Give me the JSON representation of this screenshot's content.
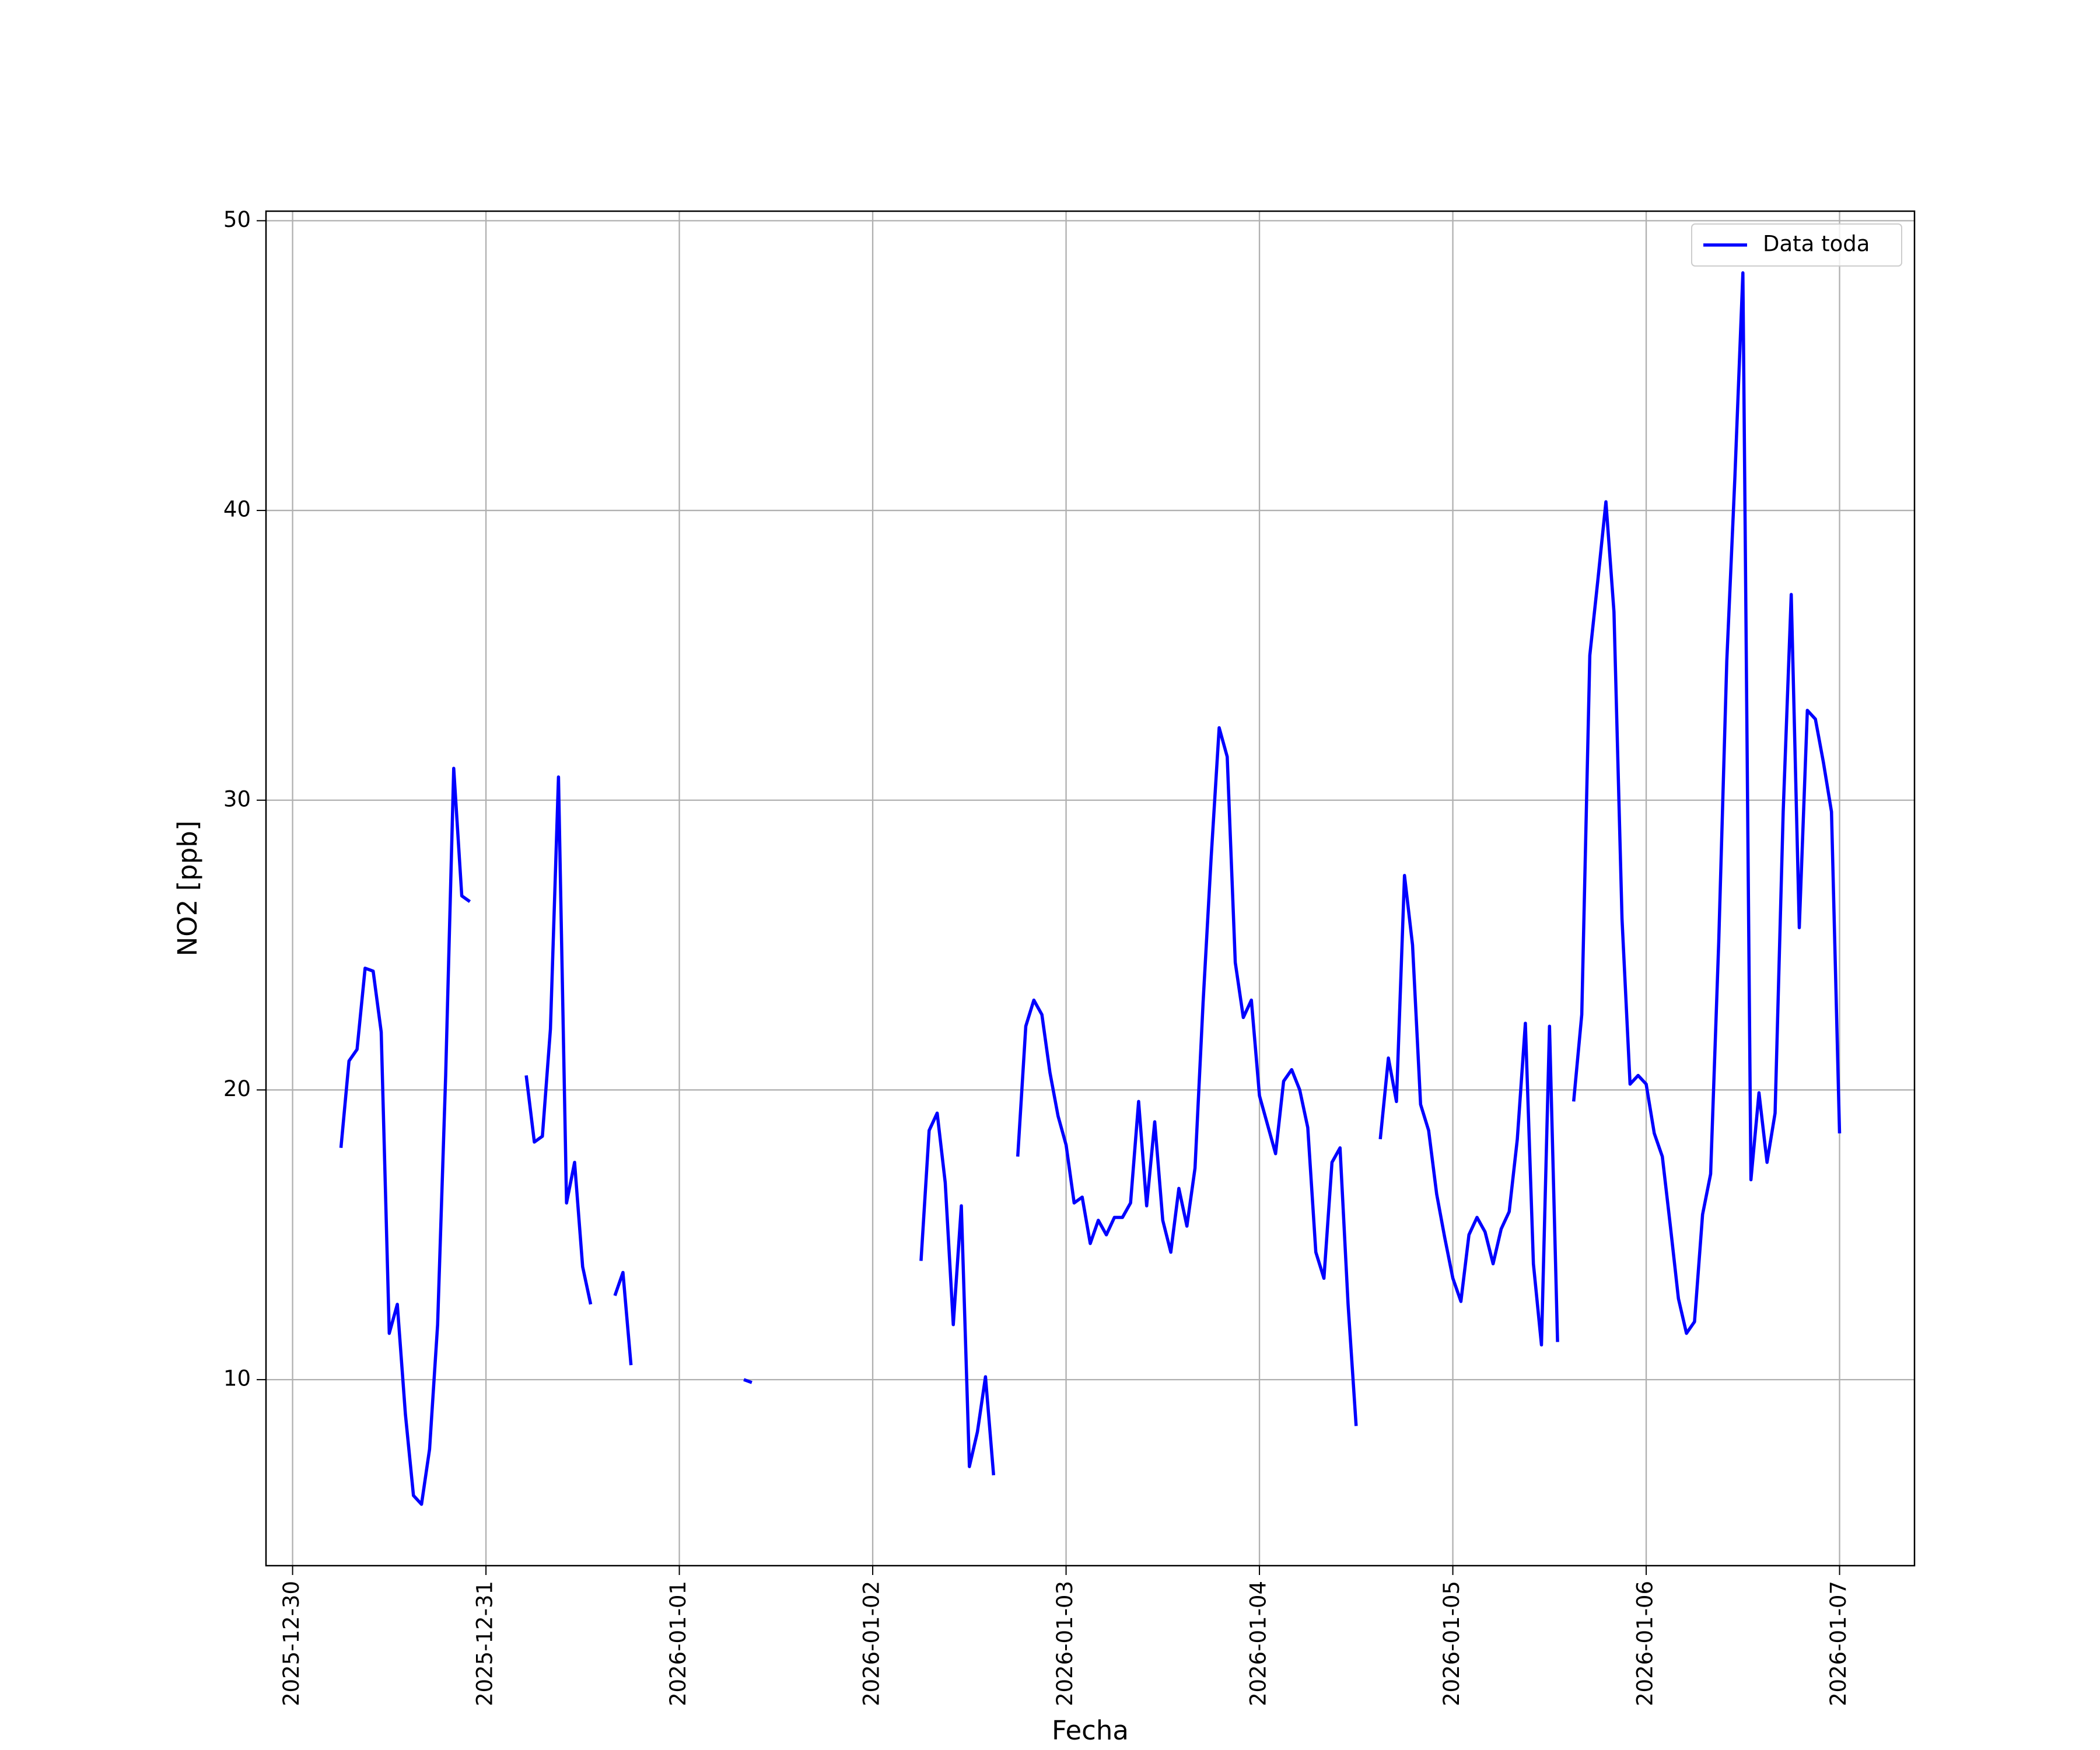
{
  "chart_data": {
    "type": "line",
    "xlabel": "Fecha",
    "ylabel": "NO2 [ppb]",
    "x": [
      "2025-12-30 06:00",
      "2025-12-30 07:00",
      "2025-12-30 08:00",
      "2025-12-30 09:00",
      "2025-12-30 10:00",
      "2025-12-30 11:00",
      "2025-12-30 12:00",
      "2025-12-30 13:00",
      "2025-12-30 14:00",
      "2025-12-30 15:00",
      "2025-12-30 16:00",
      "2025-12-30 17:00",
      "2025-12-30 18:00",
      "2025-12-30 19:00",
      "2025-12-30 20:00",
      "2025-12-30 21:00",
      "2025-12-30 22:00",
      "2025-12-30 23:00",
      "2025-12-31 00:00",
      "2025-12-31 01:00",
      "2025-12-31 02:00",
      "2025-12-31 03:00",
      "2025-12-31 04:00",
      "2025-12-31 05:00",
      "2025-12-31 06:00",
      "2025-12-31 07:00",
      "2025-12-31 08:00",
      "2025-12-31 09:00",
      "2025-12-31 10:00",
      "2025-12-31 11:00",
      "2025-12-31 12:00",
      "2025-12-31 13:00",
      "2025-12-31 14:00",
      "2025-12-31 15:00",
      "2025-12-31 16:00",
      "2025-12-31 17:00",
      "2025-12-31 18:00",
      "2025-12-31 19:00",
      "2025-12-31 20:00",
      "2025-12-31 21:00",
      "2025-12-31 22:00",
      "2025-12-31 23:00",
      "2026-01-01 00:00",
      "2026-01-01 01:00",
      "2026-01-01 02:00",
      "2026-01-01 03:00",
      "2026-01-01 04:00",
      "2026-01-01 05:00",
      "2026-01-01 06:00",
      "2026-01-01 07:00",
      "2026-01-01 08:00",
      "2026-01-01 09:00",
      "2026-01-01 10:00",
      "2026-01-01 11:00",
      "2026-01-01 12:00",
      "2026-01-01 13:00",
      "2026-01-01 14:00",
      "2026-01-01 15:00",
      "2026-01-01 16:00",
      "2026-01-01 17:00",
      "2026-01-01 18:00",
      "2026-01-01 19:00",
      "2026-01-01 20:00",
      "2026-01-01 21:00",
      "2026-01-01 22:00",
      "2026-01-01 23:00",
      "2026-01-02 00:00",
      "2026-01-02 01:00",
      "2026-01-02 02:00",
      "2026-01-02 03:00",
      "2026-01-02 04:00",
      "2026-01-02 05:00",
      "2026-01-02 06:00",
      "2026-01-02 07:00",
      "2026-01-02 08:00",
      "2026-01-02 09:00",
      "2026-01-02 10:00",
      "2026-01-02 11:00",
      "2026-01-02 12:00",
      "2026-01-02 13:00",
      "2026-01-02 14:00",
      "2026-01-02 15:00",
      "2026-01-02 16:00",
      "2026-01-02 17:00",
      "2026-01-02 18:00",
      "2026-01-02 19:00",
      "2026-01-02 20:00",
      "2026-01-02 21:00",
      "2026-01-02 22:00",
      "2026-01-02 23:00",
      "2026-01-03 00:00",
      "2026-01-03 01:00",
      "2026-01-03 02:00",
      "2026-01-03 03:00",
      "2026-01-03 04:00",
      "2026-01-03 05:00",
      "2026-01-03 06:00",
      "2026-01-03 07:00",
      "2026-01-03 08:00",
      "2026-01-03 09:00",
      "2026-01-03 10:00",
      "2026-01-03 11:00",
      "2026-01-03 12:00",
      "2026-01-03 13:00",
      "2026-01-03 14:00",
      "2026-01-03 15:00",
      "2026-01-03 16:00",
      "2026-01-03 17:00",
      "2026-01-03 18:00",
      "2026-01-03 19:00",
      "2026-01-03 20:00",
      "2026-01-03 21:00",
      "2026-01-03 22:00",
      "2026-01-03 23:00",
      "2026-01-04 00:00",
      "2026-01-04 01:00",
      "2026-01-04 02:00",
      "2026-01-04 03:00",
      "2026-01-04 04:00",
      "2026-01-04 05:00",
      "2026-01-04 06:00",
      "2026-01-04 07:00",
      "2026-01-04 08:00",
      "2026-01-04 09:00",
      "2026-01-04 10:00",
      "2026-01-04 11:00",
      "2026-01-04 12:00",
      "2026-01-04 13:00",
      "2026-01-04 14:00",
      "2026-01-04 15:00",
      "2026-01-04 16:00",
      "2026-01-04 17:00",
      "2026-01-04 18:00",
      "2026-01-04 19:00",
      "2026-01-04 20:00",
      "2026-01-04 21:00",
      "2026-01-04 22:00",
      "2026-01-04 23:00",
      "2026-01-05 00:00",
      "2026-01-05 01:00",
      "2026-01-05 02:00",
      "2026-01-05 03:00",
      "2026-01-05 04:00",
      "2026-01-05 05:00",
      "2026-01-05 06:00",
      "2026-01-05 07:00",
      "2026-01-05 08:00",
      "2026-01-05 09:00",
      "2026-01-05 10:00",
      "2026-01-05 11:00",
      "2026-01-05 12:00",
      "2026-01-05 13:00",
      "2026-01-05 14:00",
      "2026-01-05 15:00",
      "2026-01-05 16:00",
      "2026-01-05 17:00",
      "2026-01-05 18:00",
      "2026-01-05 19:00",
      "2026-01-05 20:00",
      "2026-01-05 21:00",
      "2026-01-05 22:00",
      "2026-01-05 23:00",
      "2026-01-06 00:00",
      "2026-01-06 01:00",
      "2026-01-06 02:00",
      "2026-01-06 03:00",
      "2026-01-06 04:00",
      "2026-01-06 05:00",
      "2026-01-06 06:00",
      "2026-01-06 07:00",
      "2026-01-06 08:00",
      "2026-01-06 09:00",
      "2026-01-06 10:00",
      "2026-01-06 11:00",
      "2026-01-06 12:00",
      "2026-01-06 13:00",
      "2026-01-06 14:00",
      "2026-01-06 15:00",
      "2026-01-06 16:00",
      "2026-01-06 17:00",
      "2026-01-06 18:00",
      "2026-01-06 19:00",
      "2026-01-06 20:00",
      "2026-01-06 21:00",
      "2026-01-06 22:00",
      "2026-01-06 23:00",
      "2026-01-07 00:00"
    ],
    "series": [
      {
        "name": "Data toda",
        "color": "#0000ff",
        "values": [
          18.0,
          21.0,
          21.4,
          24.2,
          24.1,
          22.0,
          11.6,
          12.6,
          8.8,
          6.0,
          5.7,
          7.6,
          11.9,
          20.5,
          31.1,
          26.7,
          26.5,
          null,
          null,
          null,
          null,
          null,
          null,
          20.5,
          18.2,
          18.4,
          22.1,
          30.8,
          16.1,
          17.5,
          13.9,
          12.6,
          null,
          null,
          12.9,
          13.7,
          10.5,
          null,
          null,
          null,
          null,
          null,
          null,
          null,
          null,
          null,
          null,
          null,
          null,
          null,
          10.0,
          9.9,
          null,
          null,
          null,
          null,
          null,
          null,
          null,
          null,
          null,
          null,
          null,
          null,
          null,
          null,
          null,
          null,
          null,
          null,
          null,
          null,
          14.1,
          18.6,
          19.2,
          16.8,
          11.9,
          16.0,
          7.0,
          8.2,
          10.1,
          6.7,
          null,
          null,
          17.7,
          22.2,
          23.1,
          22.6,
          20.6,
          19.1,
          18.1,
          16.1,
          16.3,
          14.7,
          15.5,
          15.0,
          15.6,
          15.6,
          16.1,
          19.6,
          16.0,
          18.9,
          15.5,
          14.4,
          16.6,
          15.3,
          17.3,
          23.0,
          28.0,
          32.5,
          31.5,
          24.4,
          22.5,
          23.1,
          19.8,
          18.8,
          17.8,
          20.3,
          20.7,
          20.0,
          18.7,
          14.4,
          13.5,
          17.5,
          18.0,
          12.6,
          8.4,
          null,
          null,
          18.3,
          21.1,
          19.6,
          27.4,
          25.0,
          19.5,
          18.6,
          16.4,
          14.9,
          13.5,
          12.7,
          15.0,
          15.6,
          15.1,
          14.0,
          15.2,
          15.8,
          18.3,
          22.3,
          14.0,
          11.2,
          22.2,
          11.3,
          null,
          19.6,
          22.6,
          35.0,
          37.6,
          40.3,
          36.5,
          25.9,
          20.2,
          20.5,
          20.2,
          18.5,
          17.7,
          15.3,
          12.8,
          11.6,
          12.0,
          15.7,
          17.1,
          25.1,
          34.8,
          41.1,
          48.2,
          16.9,
          19.9,
          17.5,
          19.2,
          29.6,
          37.1,
          25.6,
          33.1,
          32.8,
          31.3,
          29.6,
          18.5
        ]
      }
    ],
    "xlim": [
      "2025-12-29 20:42",
      "2026-01-07 09:18"
    ],
    "xticks": [
      "2025-12-30",
      "2025-12-31",
      "2026-01-01",
      "2026-01-02",
      "2026-01-03",
      "2026-01-04",
      "2026-01-05",
      "2026-01-06",
      "2026-01-07"
    ],
    "ylim": [
      3.58,
      50.33
    ],
    "yticks": [
      10,
      20,
      30,
      40,
      50
    ],
    "grid": true,
    "legend": "upper right"
  }
}
